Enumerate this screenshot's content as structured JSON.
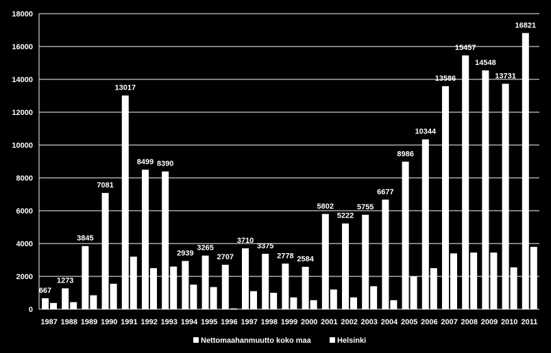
{
  "chart_data": {
    "type": "bar",
    "title": "",
    "xlabel": "",
    "ylabel": "",
    "ylim": [
      0,
      18000
    ],
    "yticks": [
      0,
      2000,
      4000,
      6000,
      8000,
      10000,
      12000,
      14000,
      16000,
      18000
    ],
    "grid": true,
    "legend_position": "bottom",
    "colors": {
      "background": "#000000",
      "bars": "#ffffff",
      "text": "#ffffff",
      "grid": "#ffffff"
    },
    "categories": [
      "1987",
      "1988",
      "1989",
      "1990",
      "1991",
      "1992",
      "1993",
      "1994",
      "1995",
      "1996",
      "1997",
      "1998",
      "1999",
      "2000",
      "2001",
      "2002",
      "2003",
      "2004",
      "2005",
      "2006",
      "2007",
      "2008",
      "2009",
      "2010",
      "2011"
    ],
    "series": [
      {
        "name": "Nettomaahanmuutto koko maa",
        "values": [
          667,
          1273,
          3845,
          7081,
          13017,
          8499,
          8390,
          2939,
          3265,
          2707,
          3710,
          3375,
          2778,
          2584,
          5802,
          5222,
          5755,
          6677,
          8986,
          10344,
          13586,
          15457,
          14548,
          13731,
          16821
        ],
        "labels": [
          "667",
          "1273",
          "3845",
          "7081",
          "13017",
          "8499",
          "8390",
          "2939",
          "3265",
          "2707",
          "3710",
          "3375",
          "2778",
          "2584",
          "5802",
          "5222",
          "5755",
          "6677",
          "8986",
          "10344",
          "13586",
          "15457",
          "14548",
          "13731",
          "16821"
        ]
      },
      {
        "name": "Helsinki",
        "values": [
          380,
          430,
          850,
          1550,
          3200,
          2500,
          2600,
          1500,
          1350,
          50,
          1100,
          1000,
          720,
          550,
          1200,
          720,
          1400,
          550,
          2000,
          2500,
          3400,
          3450,
          3450,
          2550,
          3800
        ]
      }
    ]
  }
}
